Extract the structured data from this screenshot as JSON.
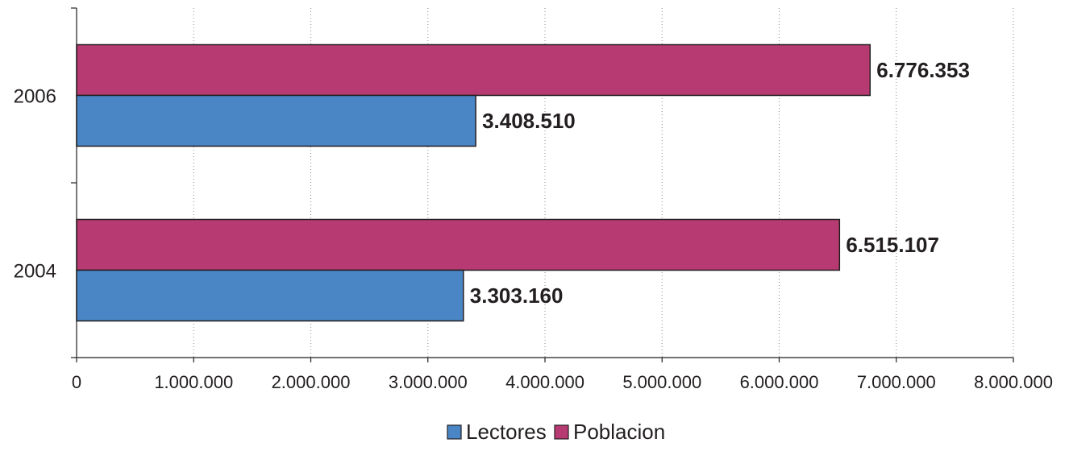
{
  "chart_data": {
    "type": "bar",
    "orientation": "horizontal",
    "categories": [
      "2004",
      "2006"
    ],
    "series": [
      {
        "name": "Lectores",
        "color": "#4a86c5",
        "values": [
          3303160,
          3408510
        ],
        "labels": [
          "3.303.160",
          "3.408.510"
        ]
      },
      {
        "name": "Poblacion",
        "color": "#b83a72",
        "values": [
          6515107,
          6776353
        ],
        "labels": [
          "6.515.107",
          "6.776.353"
        ]
      }
    ],
    "xlim": [
      0,
      8000000
    ],
    "xticks": [
      0,
      1000000,
      2000000,
      3000000,
      4000000,
      5000000,
      6000000,
      7000000,
      8000000
    ],
    "xtick_labels": [
      "0",
      "1.000.000",
      "2.000.000",
      "3.000.000",
      "4.000.000",
      "5.000.000",
      "6.000.000",
      "7.000.000",
      "8.000.000"
    ],
    "gridlines": "vertical-dotted",
    "legend_position": "bottom"
  }
}
